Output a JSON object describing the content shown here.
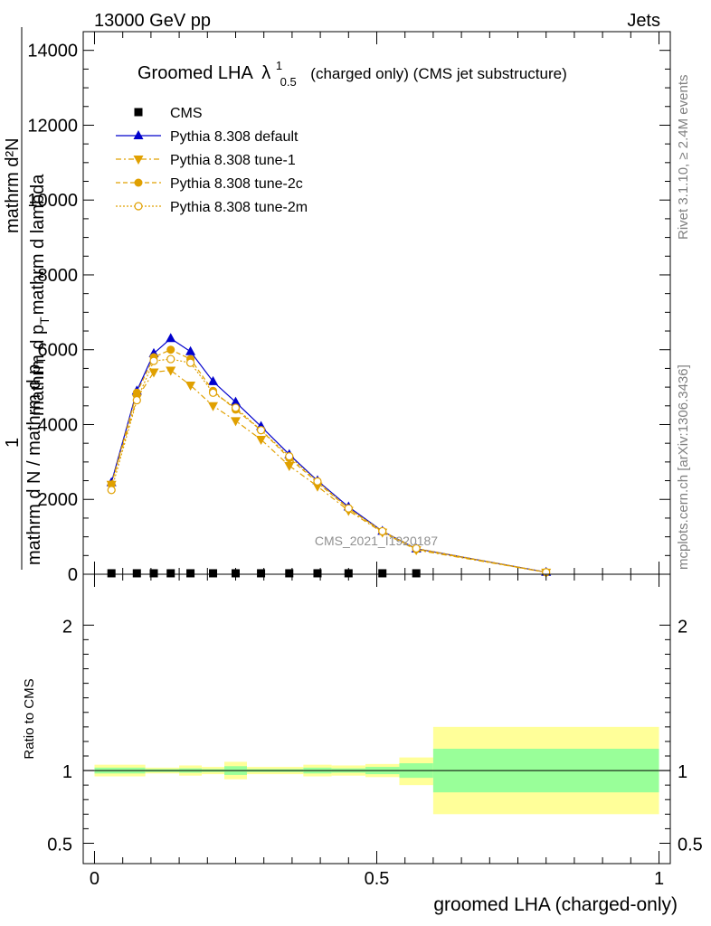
{
  "header": {
    "left": "13000 GeV pp",
    "right": "Jets"
  },
  "side_labels": {
    "rivet": "Rivet 3.1.10, ≥ 2.4M events",
    "mcplots": "mcplots.cern.ch [arXiv:1306.3436]"
  },
  "watermark": "CMS_2021_I1920187",
  "chart_data": [
    {
      "type": "line",
      "title_main": "Groomed LHA",
      "title_lambda": "λ",
      "title_sup": "1",
      "title_sub": "0.5",
      "title_rest": "(charged only) (CMS jet substructure)",
      "ylabel_numer": "mathrm d²N",
      "ylabel_denom_a": "mathrm d p",
      "ylabel_denom_b": "mathrm d lambda",
      "ylabel_sub": "T",
      "ylabel_one": "1",
      "ylabel_n_denom": "mathrm d N / mathrm d p",
      "ylim": [
        0,
        14500
      ],
      "yticks": [
        0,
        2000,
        4000,
        6000,
        8000,
        10000,
        12000,
        14000
      ],
      "ytick_labels": [
        "0",
        "2000",
        "4000",
        "6000",
        "8000",
        "10000",
        "12000",
        "14000"
      ],
      "xlim": [
        -0.02,
        1.02
      ],
      "legend_position": "top-left",
      "series": [
        {
          "name": "CMS",
          "color": "#000000",
          "marker": "square",
          "x": [
            0.03,
            0.075,
            0.105,
            0.135,
            0.17,
            0.21,
            0.25,
            0.295,
            0.345,
            0.395,
            0.45,
            0.51,
            0.57
          ],
          "y": [
            25,
            25,
            25,
            25,
            25,
            25,
            25,
            25,
            25,
            25,
            25,
            25,
            25
          ]
        },
        {
          "name": "Pythia 8.308 default",
          "color": "#0000cc",
          "marker": "triangle-up",
          "dash": "",
          "x": [
            0.03,
            0.075,
            0.105,
            0.135,
            0.17,
            0.21,
            0.25,
            0.295,
            0.345,
            0.395,
            0.45,
            0.51,
            0.57,
            0.8
          ],
          "y": [
            2450,
            4900,
            5900,
            6300,
            5950,
            5150,
            4600,
            3950,
            3200,
            2500,
            1800,
            1150,
            680,
            55
          ]
        },
        {
          "name": "Pythia 8.308 tune-1",
          "color": "#e0a000",
          "marker": "triangle-down",
          "dash": "6,3,2,3",
          "x": [
            0.03,
            0.075,
            0.105,
            0.135,
            0.17,
            0.21,
            0.25,
            0.295,
            0.345,
            0.395,
            0.45,
            0.51,
            0.57,
            0.8
          ],
          "y": [
            2400,
            4700,
            5400,
            5450,
            5050,
            4500,
            4100,
            3600,
            2900,
            2350,
            1700,
            1120,
            650,
            50
          ]
        },
        {
          "name": "Pythia 8.308 tune-2c",
          "color": "#e0a000",
          "marker": "circle",
          "dash": "5,3",
          "x": [
            0.03,
            0.075,
            0.105,
            0.135,
            0.17,
            0.21,
            0.25,
            0.295,
            0.345,
            0.395,
            0.45,
            0.51,
            0.57,
            0.8
          ],
          "y": [
            2400,
            4850,
            5800,
            6000,
            5750,
            4900,
            4400,
            3850,
            3100,
            2450,
            1750,
            1140,
            670,
            52
          ]
        },
        {
          "name": "Pythia 8.308 tune-2m",
          "color": "#e0a000",
          "marker": "open-circle",
          "dash": "2,2",
          "x": [
            0.03,
            0.075,
            0.105,
            0.135,
            0.17,
            0.21,
            0.25,
            0.295,
            0.345,
            0.395,
            0.45,
            0.51,
            0.57,
            0.8
          ],
          "y": [
            2250,
            4650,
            5700,
            5750,
            5650,
            4850,
            4450,
            3850,
            3150,
            2480,
            1760,
            1150,
            690,
            55
          ]
        }
      ]
    },
    {
      "type": "area",
      "ylabel": "Ratio to CMS",
      "xlabel": "groomed LHA (charged-only)",
      "ylim": [
        0.36,
        2.35
      ],
      "yticks": [
        0.5,
        1,
        2
      ],
      "ytick_labels": [
        "0.5",
        "1",
        "2"
      ],
      "xticks": [
        0,
        0.5,
        1
      ],
      "xtick_labels": [
        "0",
        "0.5",
        "1"
      ],
      "reference_line": 1,
      "bins": [
        {
          "x0": 0.0,
          "x1": 0.09,
          "yel_lo": 0.96,
          "yel_hi": 1.04,
          "grn_lo": 0.98,
          "grn_hi": 1.02
        },
        {
          "x0": 0.09,
          "x1": 0.15,
          "yel_lo": 0.98,
          "yel_hi": 1.02,
          "grn_lo": 0.99,
          "grn_hi": 1.01
        },
        {
          "x0": 0.15,
          "x1": 0.19,
          "yel_lo": 0.965,
          "yel_hi": 1.035,
          "grn_lo": 0.985,
          "grn_hi": 1.015
        },
        {
          "x0": 0.19,
          "x1": 0.23,
          "yel_lo": 0.975,
          "yel_hi": 1.025,
          "grn_lo": 0.99,
          "grn_hi": 1.01
        },
        {
          "x0": 0.23,
          "x1": 0.27,
          "yel_lo": 0.94,
          "yel_hi": 1.06,
          "grn_lo": 0.97,
          "grn_hi": 1.03
        },
        {
          "x0": 0.27,
          "x1": 0.37,
          "yel_lo": 0.975,
          "yel_hi": 1.025,
          "grn_lo": 0.99,
          "grn_hi": 1.01
        },
        {
          "x0": 0.37,
          "x1": 0.42,
          "yel_lo": 0.96,
          "yel_hi": 1.04,
          "grn_lo": 0.98,
          "grn_hi": 1.02
        },
        {
          "x0": 0.42,
          "x1": 0.48,
          "yel_lo": 0.965,
          "yel_hi": 1.035,
          "grn_lo": 0.985,
          "grn_hi": 1.015
        },
        {
          "x0": 0.48,
          "x1": 0.54,
          "yel_lo": 0.955,
          "yel_hi": 1.045,
          "grn_lo": 0.975,
          "grn_hi": 1.025
        },
        {
          "x0": 0.54,
          "x1": 0.6,
          "yel_lo": 0.9,
          "yel_hi": 1.09,
          "grn_lo": 0.95,
          "grn_hi": 1.05
        },
        {
          "x0": 0.6,
          "x1": 1.0,
          "yel_lo": 0.7,
          "yel_hi": 1.3,
          "grn_lo": 0.85,
          "grn_hi": 1.15
        }
      ]
    }
  ]
}
